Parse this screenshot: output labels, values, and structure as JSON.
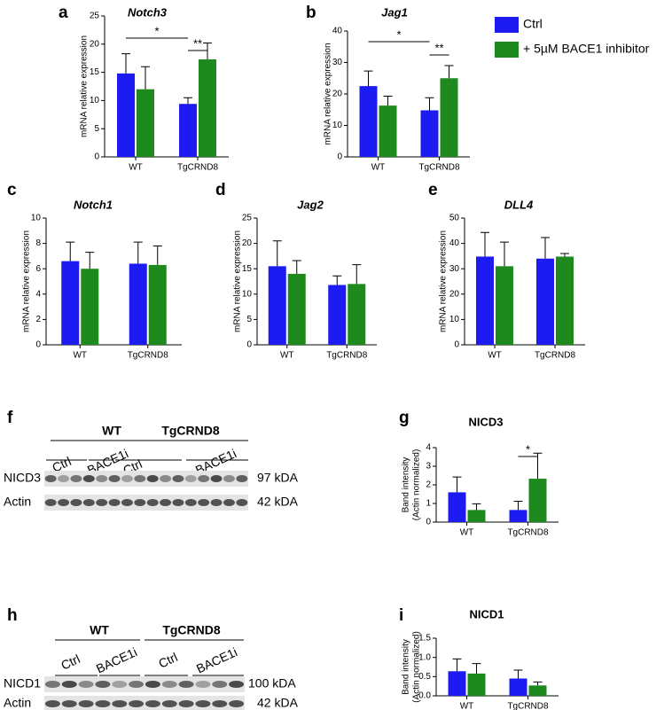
{
  "chart_data": [
    {
      "type": "bar",
      "panel": "a",
      "title": "Notch3",
      "ylabel": "mRNA relative expression",
      "categories": [
        "WT",
        "TgCRND8"
      ],
      "series": [
        {
          "name": "Ctrl",
          "color": "#1c1cf2",
          "values": [
            14.8,
            9.4
          ],
          "errors": [
            3.5,
            1.1
          ]
        },
        {
          "name": "+ 5µM BACE1 inhibitor",
          "color": "#1e8a1e",
          "values": [
            12,
            17.3
          ],
          "errors": [
            4,
            2.9
          ]
        }
      ],
      "ylim": [
        0,
        25
      ],
      "yticks": [
        0,
        5,
        10,
        15,
        20,
        25
      ],
      "annotations": [
        "*",
        "**"
      ]
    },
    {
      "type": "bar",
      "panel": "b",
      "title": "Jag1",
      "ylabel": "mRNA relative expression",
      "categories": [
        "WT",
        "TgCRND8"
      ],
      "series": [
        {
          "color": "#1c1cf2",
          "values": [
            22.5,
            14.8
          ],
          "errors": [
            4.8,
            4
          ]
        },
        {
          "color": "#1e8a1e",
          "values": [
            16.3,
            25
          ],
          "errors": [
            3,
            4
          ]
        }
      ],
      "ylim": [
        0,
        40
      ],
      "yticks": [
        0,
        10,
        20,
        30,
        40
      ],
      "annotations": [
        "*",
        "**"
      ]
    },
    {
      "type": "bar",
      "panel": "c",
      "title": "Notch1",
      "ylabel": "mRNA relative expression",
      "categories": [
        "WT",
        "TgCRND8"
      ],
      "series": [
        {
          "color": "#1c1cf2",
          "values": [
            6.6,
            6.4
          ],
          "errors": [
            1.5,
            1.7
          ]
        },
        {
          "color": "#1e8a1e",
          "values": [
            6,
            6.3
          ],
          "errors": [
            1.3,
            1.5
          ]
        }
      ],
      "ylim": [
        0,
        10
      ],
      "yticks": [
        0,
        2,
        4,
        6,
        8,
        10
      ]
    },
    {
      "type": "bar",
      "panel": "d",
      "title": "Jag2",
      "ylabel": "mRNA relative expression",
      "categories": [
        "WT",
        "TgCRND8"
      ],
      "series": [
        {
          "color": "#1c1cf2",
          "values": [
            15.5,
            11.8
          ],
          "errors": [
            5,
            1.8
          ]
        },
        {
          "color": "#1e8a1e",
          "values": [
            14,
            12
          ],
          "errors": [
            2.6,
            3.8
          ]
        }
      ],
      "ylim": [
        0,
        25
      ],
      "yticks": [
        0,
        5,
        10,
        15,
        20,
        25
      ]
    },
    {
      "type": "bar",
      "panel": "e",
      "title": "DLL4",
      "ylabel": "mRNA relative expression",
      "categories": [
        "WT",
        "TgCRND8"
      ],
      "series": [
        {
          "color": "#1c1cf2",
          "values": [
            34.8,
            34
          ],
          "errors": [
            9.5,
            8.3
          ]
        },
        {
          "color": "#1e8a1e",
          "values": [
            31,
            34.8
          ],
          "errors": [
            9.5,
            1.2
          ]
        }
      ],
      "ylim": [
        0,
        50
      ],
      "yticks": [
        0,
        10,
        20,
        30,
        40,
        50
      ]
    },
    {
      "type": "bar",
      "panel": "g",
      "title": "NICD3",
      "ylabel": [
        "Band intensity",
        "(Actin normalized)"
      ],
      "categories": [
        "WT",
        "TgCRND8"
      ],
      "series": [
        {
          "color": "#1c1cf2",
          "values": [
            1.6,
            0.65
          ],
          "errors": [
            0.82,
            0.47
          ]
        },
        {
          "color": "#1e8a1e",
          "values": [
            0.65,
            2.33
          ],
          "errors": [
            0.33,
            1.37
          ]
        }
      ],
      "ylim": [
        0,
        4
      ],
      "yticks": [
        0,
        1,
        2,
        3,
        4
      ],
      "annotations": [
        "*"
      ]
    },
    {
      "type": "bar",
      "panel": "i",
      "title": "NICD1",
      "ylabel": [
        "Band intensity",
        "(Actin normalized)"
      ],
      "categories": [
        "WT",
        "TgCRND8"
      ],
      "series": [
        {
          "color": "#1c1cf2",
          "values": [
            0.64,
            0.45
          ],
          "errors": [
            0.32,
            0.22
          ]
        },
        {
          "color": "#1e8a1e",
          "values": [
            0.58,
            0.27
          ],
          "errors": [
            0.26,
            0.09
          ]
        }
      ],
      "ylim": [
        0,
        1.5
      ],
      "yticks": [
        {
          "value": 0,
          "label": "0.0"
        },
        0.5,
        {
          "value": 1,
          "label": "1.0"
        },
        1.5
      ]
    }
  ],
  "blots": [
    {
      "panel": "f",
      "groups": [
        "WT",
        "TgCRND8"
      ],
      "conditions": [
        "Ctrl",
        "BACE1i",
        "Ctrl",
        "BACE1i"
      ],
      "bands": [
        {
          "label": "NICD3",
          "size": "97 kDA"
        },
        {
          "label": "Actin",
          "size": "42 kDA"
        }
      ]
    },
    {
      "panel": "h",
      "groups": [
        "WT",
        "TgCRND8"
      ],
      "conditions": [
        "Ctrl",
        "BACE1i",
        "Ctrl",
        "BACE1i"
      ],
      "bands": [
        {
          "label": "NICD1",
          "size": "100 kDA"
        },
        {
          "label": "Actin",
          "size": "42 kDA"
        }
      ]
    }
  ]
}
